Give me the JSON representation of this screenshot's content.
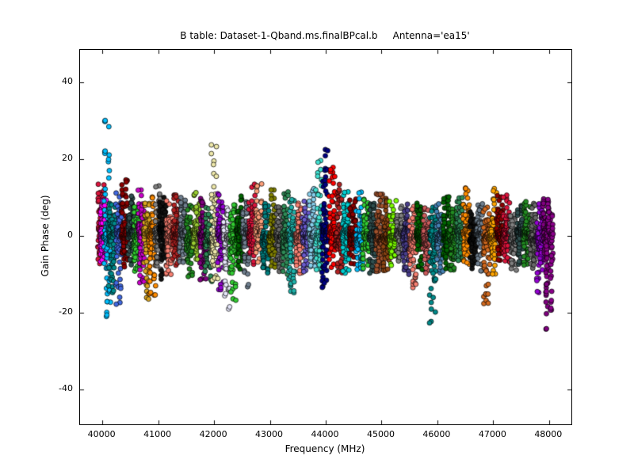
{
  "chart_data": {
    "type": "scatter",
    "title": "B table: Dataset-1-Qband.ms.finalBPcal.b     Antenna='ea15'",
    "xlabel": "Frequency (MHz)",
    "ylabel": "Gain Phase (deg)",
    "xlim": [
      39600,
      48400
    ],
    "ylim": [
      -49,
      48.4
    ],
    "xticks": [
      40000,
      41000,
      42000,
      43000,
      44000,
      45000,
      46000,
      47000,
      48000
    ],
    "yticks": [
      -40,
      -20,
      0,
      20,
      40
    ],
    "grid": false,
    "legend": "none",
    "marker": {
      "shape": "circle",
      "radius": 3,
      "edge_color": "#000000"
    },
    "cluster_fields": [
      "x_center_mhz",
      "color",
      "phase_max_deg",
      "phase_min_deg"
    ],
    "cluster_width_mhz": 115,
    "points_per_trace": 48,
    "traces_per_cluster": 2,
    "clusters": [
      [
        39980,
        "#DC143C",
        12,
        -8
      ],
      [
        40020,
        "#FF00FF",
        10,
        -6
      ],
      [
        40090,
        "#00BFFF",
        30,
        -20
      ],
      [
        40170,
        "#008B8B",
        8,
        -15
      ],
      [
        40300,
        "#4169E1",
        10,
        -18
      ],
      [
        40400,
        "#8B0000",
        15,
        -8
      ],
      [
        40520,
        "#2F4F4F",
        9,
        -8
      ],
      [
        40620,
        "#32CD32",
        8,
        -8
      ],
      [
        40700,
        "#CC00CC",
        10,
        -13
      ],
      [
        40800,
        "#DAA520",
        8,
        -17
      ],
      [
        40900,
        "#FF8C00",
        10,
        -16
      ],
      [
        41000,
        "#808080",
        12,
        -9
      ],
      [
        41080,
        "#111111",
        8,
        -12
      ],
      [
        41200,
        "#FA8072",
        9,
        -9
      ],
      [
        41320,
        "#B22222",
        10,
        -8
      ],
      [
        41440,
        "#708090",
        8,
        -8
      ],
      [
        41560,
        "#228B22",
        9,
        -9
      ],
      [
        41680,
        "#9ACD32",
        10,
        -7
      ],
      [
        41800,
        "#800080",
        9,
        -12
      ],
      [
        41900,
        "#2E8B57",
        8,
        -10
      ],
      [
        42010,
        "#EEE8AA",
        25,
        -10
      ],
      [
        42120,
        "#9400D3",
        10,
        -15
      ],
      [
        42230,
        "#E6E6FA",
        8,
        -18
      ],
      [
        42340,
        "#32CD32",
        9,
        -15
      ],
      [
        42460,
        "#006400",
        9,
        -9
      ],
      [
        42570,
        "#708090",
        8,
        -14
      ],
      [
        42680,
        "#DC143C",
        12,
        -8
      ],
      [
        42800,
        "#FFA07A",
        12,
        -8
      ],
      [
        42920,
        "#008080",
        9,
        -9
      ],
      [
        43040,
        "#808000",
        12,
        -8
      ],
      [
        43160,
        "#696969",
        8,
        -8
      ],
      [
        43280,
        "#2E8B57",
        12,
        -9
      ],
      [
        43400,
        "#20B2AA",
        9,
        -15
      ],
      [
        43520,
        "#FA8072",
        8,
        -10
      ],
      [
        43640,
        "#6A5ACD",
        9,
        -9
      ],
      [
        43760,
        "#87CEEB",
        12,
        -8
      ],
      [
        43880,
        "#40E0D0",
        20,
        -8
      ],
      [
        43990,
        "#000080",
        21,
        -14
      ],
      [
        44120,
        "#FF0000",
        16,
        -9
      ],
      [
        44240,
        "#B22222",
        14,
        -8
      ],
      [
        44360,
        "#00CED1",
        10,
        -10
      ],
      [
        44480,
        "#8B0000",
        9,
        -8
      ],
      [
        44600,
        "#00BFFF",
        13,
        -8
      ],
      [
        44720,
        "#32CD32",
        10,
        -8
      ],
      [
        44840,
        "#2F4F4F",
        8,
        -9
      ],
      [
        44960,
        "#A0522D",
        12,
        -8
      ],
      [
        45080,
        "#8B4513",
        10,
        -9
      ],
      [
        45200,
        "#7CFC00",
        10,
        -7
      ],
      [
        45320,
        "#808080",
        7,
        -7
      ],
      [
        45440,
        "#483D8B",
        7,
        -10
      ],
      [
        45560,
        "#FA8072",
        8,
        -12
      ],
      [
        45680,
        "#006400",
        8,
        -9
      ],
      [
        45800,
        "#CD5C5C",
        8,
        -8
      ],
      [
        45920,
        "#008B8B",
        8,
        -22
      ],
      [
        46040,
        "#4682B4",
        8,
        -9
      ],
      [
        46160,
        "#006400",
        10,
        -8
      ],
      [
        46280,
        "#228B22",
        8,
        -8
      ],
      [
        46400,
        "#2E8B57",
        9,
        -7
      ],
      [
        46520,
        "#FF8C00",
        12,
        -8
      ],
      [
        46640,
        "#111111",
        7,
        -7
      ],
      [
        46760,
        "#708090",
        7,
        -10
      ],
      [
        46880,
        "#D2691E",
        8,
        -17
      ],
      [
        47000,
        "#FFA500",
        12,
        -9
      ],
      [
        47120,
        "#8B0000",
        10,
        -7
      ],
      [
        47240,
        "#DC143C",
        9,
        -8
      ],
      [
        47360,
        "#808080",
        7,
        -7
      ],
      [
        47480,
        "#2F4F4F",
        7,
        -8
      ],
      [
        47600,
        "#228B22",
        8,
        -8
      ],
      [
        47720,
        "#696969",
        9,
        -7
      ],
      [
        47840,
        "#9400D3",
        10,
        -13
      ],
      [
        47950,
        "#800080",
        9,
        -25
      ],
      [
        48010,
        "#8B008B",
        8,
        -20
      ]
    ]
  }
}
